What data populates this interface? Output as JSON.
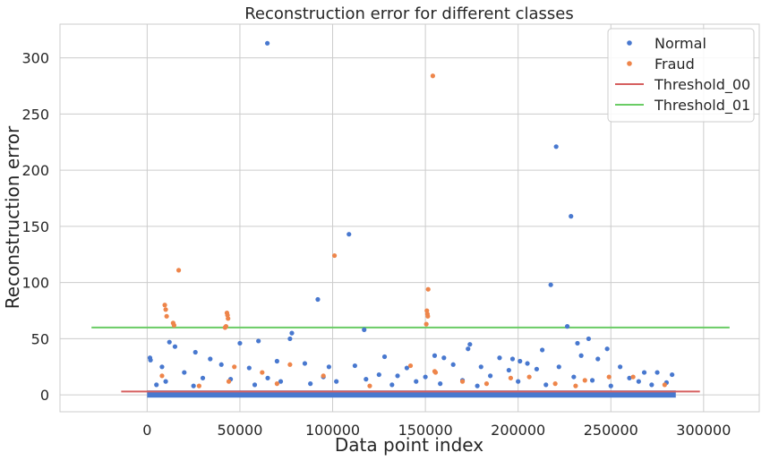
{
  "chart_data": {
    "type": "scatter",
    "title": "Reconstruction error for different classes",
    "xlabel": "Data point index",
    "ylabel": "Reconstruction error",
    "xlim": [
      -47000,
      330000
    ],
    "ylim": [
      -15,
      330
    ],
    "x_ticks": [
      0,
      50000,
      100000,
      150000,
      200000,
      250000,
      300000
    ],
    "y_ticks": [
      0,
      50,
      100,
      150,
      200,
      250,
      300
    ],
    "grid": true,
    "legend_position": "top-right",
    "series": [
      {
        "name": "Normal",
        "kind": "points",
        "color": "#4878CF",
        "points": [
          [
            64800,
            313
          ],
          [
            220500,
            221
          ],
          [
            228500,
            159
          ],
          [
            108800,
            143
          ],
          [
            217600,
            98
          ],
          [
            92000,
            85
          ],
          [
            226500,
            61
          ],
          [
            117000,
            58
          ],
          [
            78000,
            55
          ],
          [
            77000,
            50
          ],
          [
            238000,
            50
          ],
          [
            60000,
            48
          ],
          [
            232000,
            46
          ],
          [
            12000,
            47
          ],
          [
            15000,
            43
          ],
          [
            174000,
            45
          ],
          [
            50000,
            46
          ],
          [
            173000,
            41
          ],
          [
            213000,
            40
          ],
          [
            248000,
            41
          ],
          [
            70000,
            30
          ],
          [
            1500,
            33
          ],
          [
            1800,
            31
          ],
          [
            234000,
            35
          ],
          [
            26000,
            38
          ],
          [
            34000,
            32
          ],
          [
            128000,
            34
          ],
          [
            155000,
            35
          ],
          [
            160000,
            33
          ],
          [
            190000,
            33
          ],
          [
            197000,
            32
          ],
          [
            201000,
            30
          ],
          [
            205000,
            28
          ],
          [
            243000,
            32
          ],
          [
            8000,
            25
          ],
          [
            20000,
            20
          ],
          [
            40000,
            27
          ],
          [
            55000,
            24
          ],
          [
            85000,
            28
          ],
          [
            98000,
            25
          ],
          [
            112000,
            26
          ],
          [
            140000,
            24
          ],
          [
            165000,
            27
          ],
          [
            180000,
            25
          ],
          [
            195000,
            22
          ],
          [
            210000,
            23
          ],
          [
            222000,
            25
          ],
          [
            255000,
            25
          ],
          [
            268000,
            20
          ],
          [
            275000,
            20
          ],
          [
            283000,
            18
          ],
          [
            30000,
            15
          ],
          [
            65000,
            15
          ],
          [
            95000,
            16
          ],
          [
            125000,
            18
          ],
          [
            135000,
            17
          ],
          [
            150000,
            16
          ],
          [
            185000,
            17
          ],
          [
            230000,
            16
          ],
          [
            260000,
            15
          ],
          [
            10000,
            12
          ],
          [
            45000,
            14
          ],
          [
            72000,
            12
          ],
          [
            102000,
            12
          ],
          [
            118000,
            14
          ],
          [
            145000,
            12
          ],
          [
            170000,
            13
          ],
          [
            200000,
            12
          ],
          [
            240000,
            13
          ],
          [
            265000,
            12
          ],
          [
            280000,
            11
          ],
          [
            5000,
            9
          ],
          [
            25000,
            8
          ],
          [
            58000,
            9
          ],
          [
            88000,
            10
          ],
          [
            132000,
            9
          ],
          [
            158000,
            10
          ],
          [
            178000,
            8
          ],
          [
            215000,
            9
          ],
          [
            250000,
            8
          ],
          [
            272000,
            9
          ]
        ]
      },
      {
        "name": "Fraud",
        "kind": "points",
        "color": "#EE854A",
        "points": [
          [
            154000,
            284
          ],
          [
            101000,
            124
          ],
          [
            17000,
            111
          ],
          [
            151500,
            94
          ],
          [
            9500,
            80
          ],
          [
            10000,
            76
          ],
          [
            43000,
            73
          ],
          [
            43300,
            71
          ],
          [
            43600,
            68
          ],
          [
            150800,
            75
          ],
          [
            151100,
            72
          ],
          [
            151300,
            70
          ],
          [
            150500,
            63
          ],
          [
            14000,
            64
          ],
          [
            14500,
            62
          ],
          [
            10500,
            70
          ],
          [
            42000,
            60
          ],
          [
            42500,
            61
          ],
          [
            8000,
            17
          ],
          [
            47000,
            25
          ],
          [
            62000,
            20
          ],
          [
            77000,
            27
          ],
          [
            95000,
            17
          ],
          [
            142000,
            26
          ],
          [
            155000,
            21
          ],
          [
            155500,
            20
          ],
          [
            170000,
            12
          ],
          [
            196000,
            15
          ],
          [
            206000,
            16
          ],
          [
            220000,
            10
          ],
          [
            236000,
            13
          ],
          [
            249000,
            16
          ],
          [
            262000,
            16
          ],
          [
            279000,
            9
          ],
          [
            28000,
            8
          ],
          [
            44000,
            12
          ],
          [
            70000,
            10
          ],
          [
            120000,
            8
          ],
          [
            183000,
            10
          ],
          [
            231000,
            8
          ]
        ]
      },
      {
        "name": "Threshold_00",
        "kind": "hline",
        "color": "#d65f5f",
        "y": 3,
        "x_range": [
          -14000,
          298000
        ]
      },
      {
        "name": "Threshold_01",
        "kind": "hline",
        "color": "#6acc65",
        "y": 60,
        "x_range": [
          -30000,
          314000
        ]
      }
    ]
  }
}
